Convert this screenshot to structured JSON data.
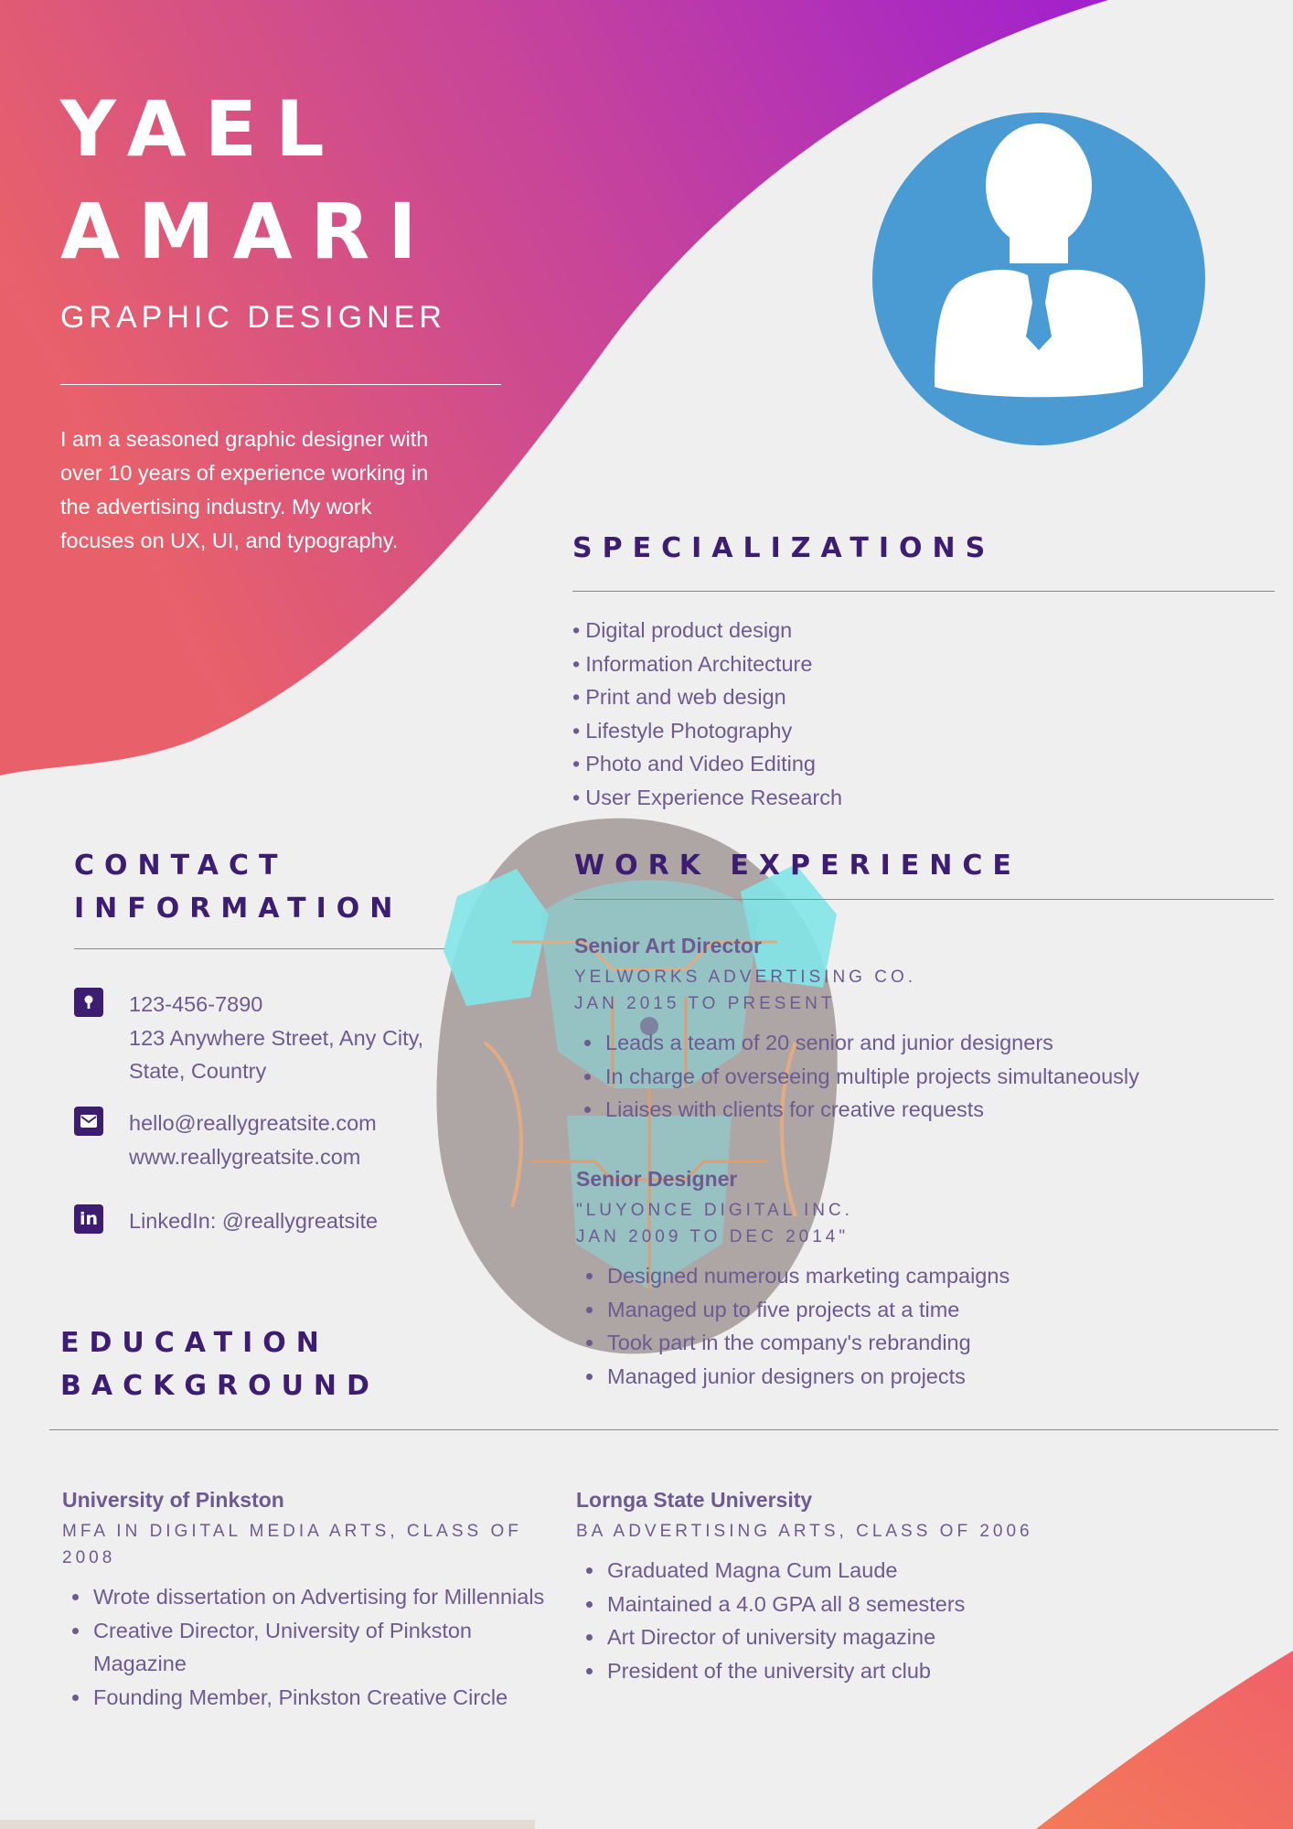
{
  "colors": {
    "gradient_start": "#e8616a",
    "gradient_mid": "#c3419f",
    "gradient_end": "#a020cf",
    "heading": "#3c1d72",
    "text": "#6d5a91",
    "avatar": "#4a9bd4",
    "background": "#efefef",
    "corner_accent": "#f3705e"
  },
  "header": {
    "first_name": "YAEL",
    "last_name": "AMARI",
    "role": "GRAPHIC DESIGNER",
    "intro": "I am a seasoned graphic designer with over 10 years of experience working in the advertising industry. My work focuses on UX, UI, and typography."
  },
  "specializations": {
    "heading": "SPECIALIZATIONS",
    "items": [
      "Digital product design",
      "Information Architecture",
      "Print and web design",
      "Lifestyle Photography",
      "Photo and Video Editing",
      "User Experience Research"
    ]
  },
  "contact": {
    "heading_line1": "CONTACT",
    "heading_line2": "INFORMATION",
    "phone": "123-456-7890",
    "address_line1": "123 Anywhere Street, Any City,",
    "address_line2": "State, Country",
    "email": "hello@reallygreatsite.com",
    "website": "www.reallygreatsite.com",
    "linkedin_glyph": "in",
    "linkedin": "LinkedIn: @reallygreatsite",
    "icons": [
      "location-pin-icon",
      "envelope-icon",
      "linkedin-icon"
    ]
  },
  "work": {
    "heading": "WORK EXPERIENCE",
    "jobs": [
      {
        "title": "Senior Art Director",
        "company": "YELWORKS ADVERTISING CO.",
        "dates": "JAN 2015 TO PRESENT",
        "bullets": [
          "Leads a team of 20 senior and junior designers",
          "In charge of overseeing multiple projects simultaneously",
          "Liaises with clients for creative requests"
        ]
      },
      {
        "title": "Senior Designer",
        "company": "\"LUYONCE DIGITAL INC.",
        "dates": "JAN 2009 TO DEC 2014\"",
        "bullets": [
          "Designed numerous marketing campaigns",
          "Managed up to five projects at a time",
          "Took part in the company's rebranding",
          "Managed junior designers on projects"
        ]
      }
    ]
  },
  "education": {
    "heading_line1": "EDUCATION",
    "heading_line2": "BACKGROUND",
    "schools": [
      {
        "name": "University of Pinkston",
        "degree": "MFA IN DIGITAL MEDIA ARTS, CLASS OF 2008",
        "bullets": [
          "Wrote dissertation on Advertising for Millennials",
          "Creative Director, University of Pinkston Magazine",
          "Founding Member, Pinkston Creative Circle"
        ]
      },
      {
        "name": "Lornga State University",
        "degree": "BA ADVERTISING ARTS, CLASS OF 2006",
        "bullets": [
          "Graduated Magna Cum Laude",
          "Maintained a 4.0 GPA all 8 semesters",
          "Art Director of university magazine",
          "President of the university art club"
        ]
      }
    ]
  },
  "decorations": {
    "avatar": "person-silhouette-icon",
    "watermark": "circuit-lion-head-watermark"
  }
}
